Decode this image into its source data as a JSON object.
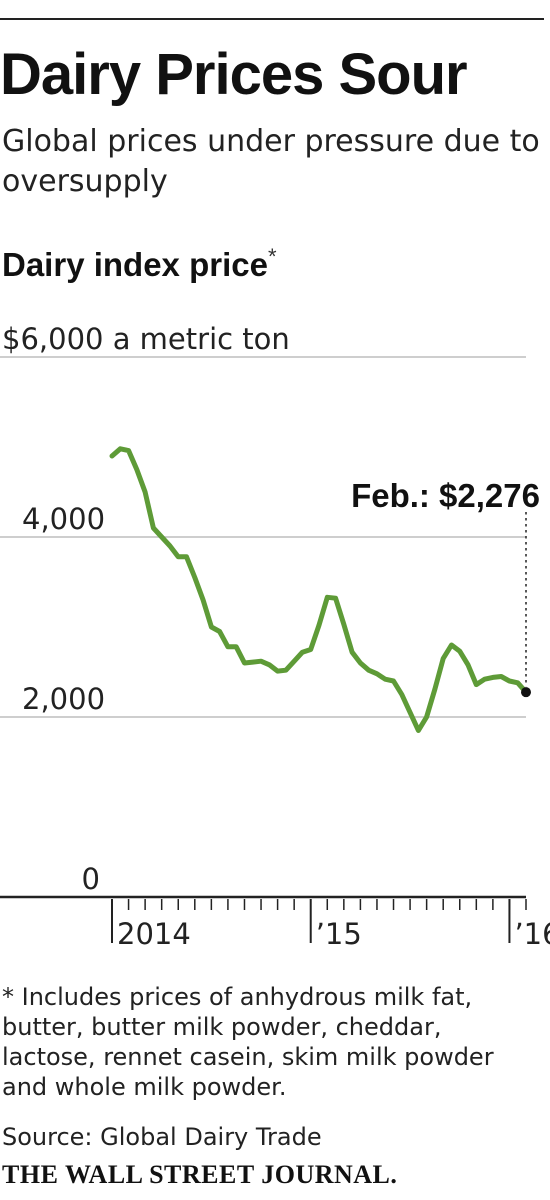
{
  "header": {
    "title": "Dairy Prices Sour",
    "subtitle": "Global prices under pressure due to oversupply"
  },
  "chart_data": {
    "type": "line",
    "title": "Dairy index price",
    "title_marker": "*",
    "ylabel": "",
    "xlabel": "",
    "y_ticks": [
      {
        "value": 0,
        "label": "0"
      },
      {
        "value": 2000,
        "label": "2,000"
      },
      {
        "value": 4000,
        "label": "4,000"
      },
      {
        "value": 6000,
        "label": "$6,000 a metric ton"
      }
    ],
    "ylim": [
      0,
      6000
    ],
    "x_ticks": [
      {
        "x": "2014-01",
        "label": "2014"
      },
      {
        "x": "2015-01",
        "label": "’15"
      },
      {
        "x": "2016-01",
        "label": "’16"
      }
    ],
    "xlim": [
      "2014-01",
      "2016-02"
    ],
    "grid": true,
    "line_color": "#5e9b37",
    "marker_color": "#111111",
    "series": [
      {
        "x": [
          "2014-01",
          "2014-01",
          "2014-02",
          "2014-02",
          "2014-03",
          "2014-03",
          "2014-04",
          "2014-04",
          "2014-05",
          "2014-05",
          "2014-06",
          "2014-06",
          "2014-07",
          "2014-07",
          "2014-08",
          "2014-08",
          "2014-09",
          "2014-09",
          "2014-10",
          "2014-10",
          "2014-11",
          "2014-11",
          "2014-12",
          "2014-12",
          "2015-01",
          "2015-01",
          "2015-02",
          "2015-02",
          "2015-03",
          "2015-03",
          "2015-04",
          "2015-04",
          "2015-05",
          "2015-05",
          "2015-06",
          "2015-06",
          "2015-07",
          "2015-07",
          "2015-08",
          "2015-08",
          "2015-09",
          "2015-09",
          "2015-10",
          "2015-10",
          "2015-11",
          "2015-11",
          "2015-12",
          "2015-12",
          "2016-01",
          "2016-01",
          "2016-02"
        ],
        "values": [
          4900,
          4980,
          4960,
          4750,
          4500,
          4100,
          4000,
          3900,
          3780,
          3780,
          3550,
          3300,
          3000,
          2950,
          2780,
          2780,
          2600,
          2610,
          2620,
          2580,
          2510,
          2520,
          2620,
          2720,
          2750,
          3020,
          3330,
          3320,
          3030,
          2720,
          2600,
          2520,
          2480,
          2420,
          2400,
          2250,
          2050,
          1850,
          2000,
          2310,
          2650,
          2800,
          2730,
          2580,
          2360,
          2420,
          2440,
          2450,
          2400,
          2380,
          2276
        ]
      }
    ],
    "annotation": {
      "label": "Feb.: $2,276",
      "x": "2016-02",
      "value": 2276
    }
  },
  "footer": {
    "footnote_marker": "*",
    "footnote": "Includes prices of anhydrous milk fat, butter, butter milk powder, cheddar, lactose, rennet casein, skim milk powder and whole milk powder.",
    "source": "Source: Global Dairy Trade",
    "masthead": "THE WALL STREET JOURNAL."
  }
}
